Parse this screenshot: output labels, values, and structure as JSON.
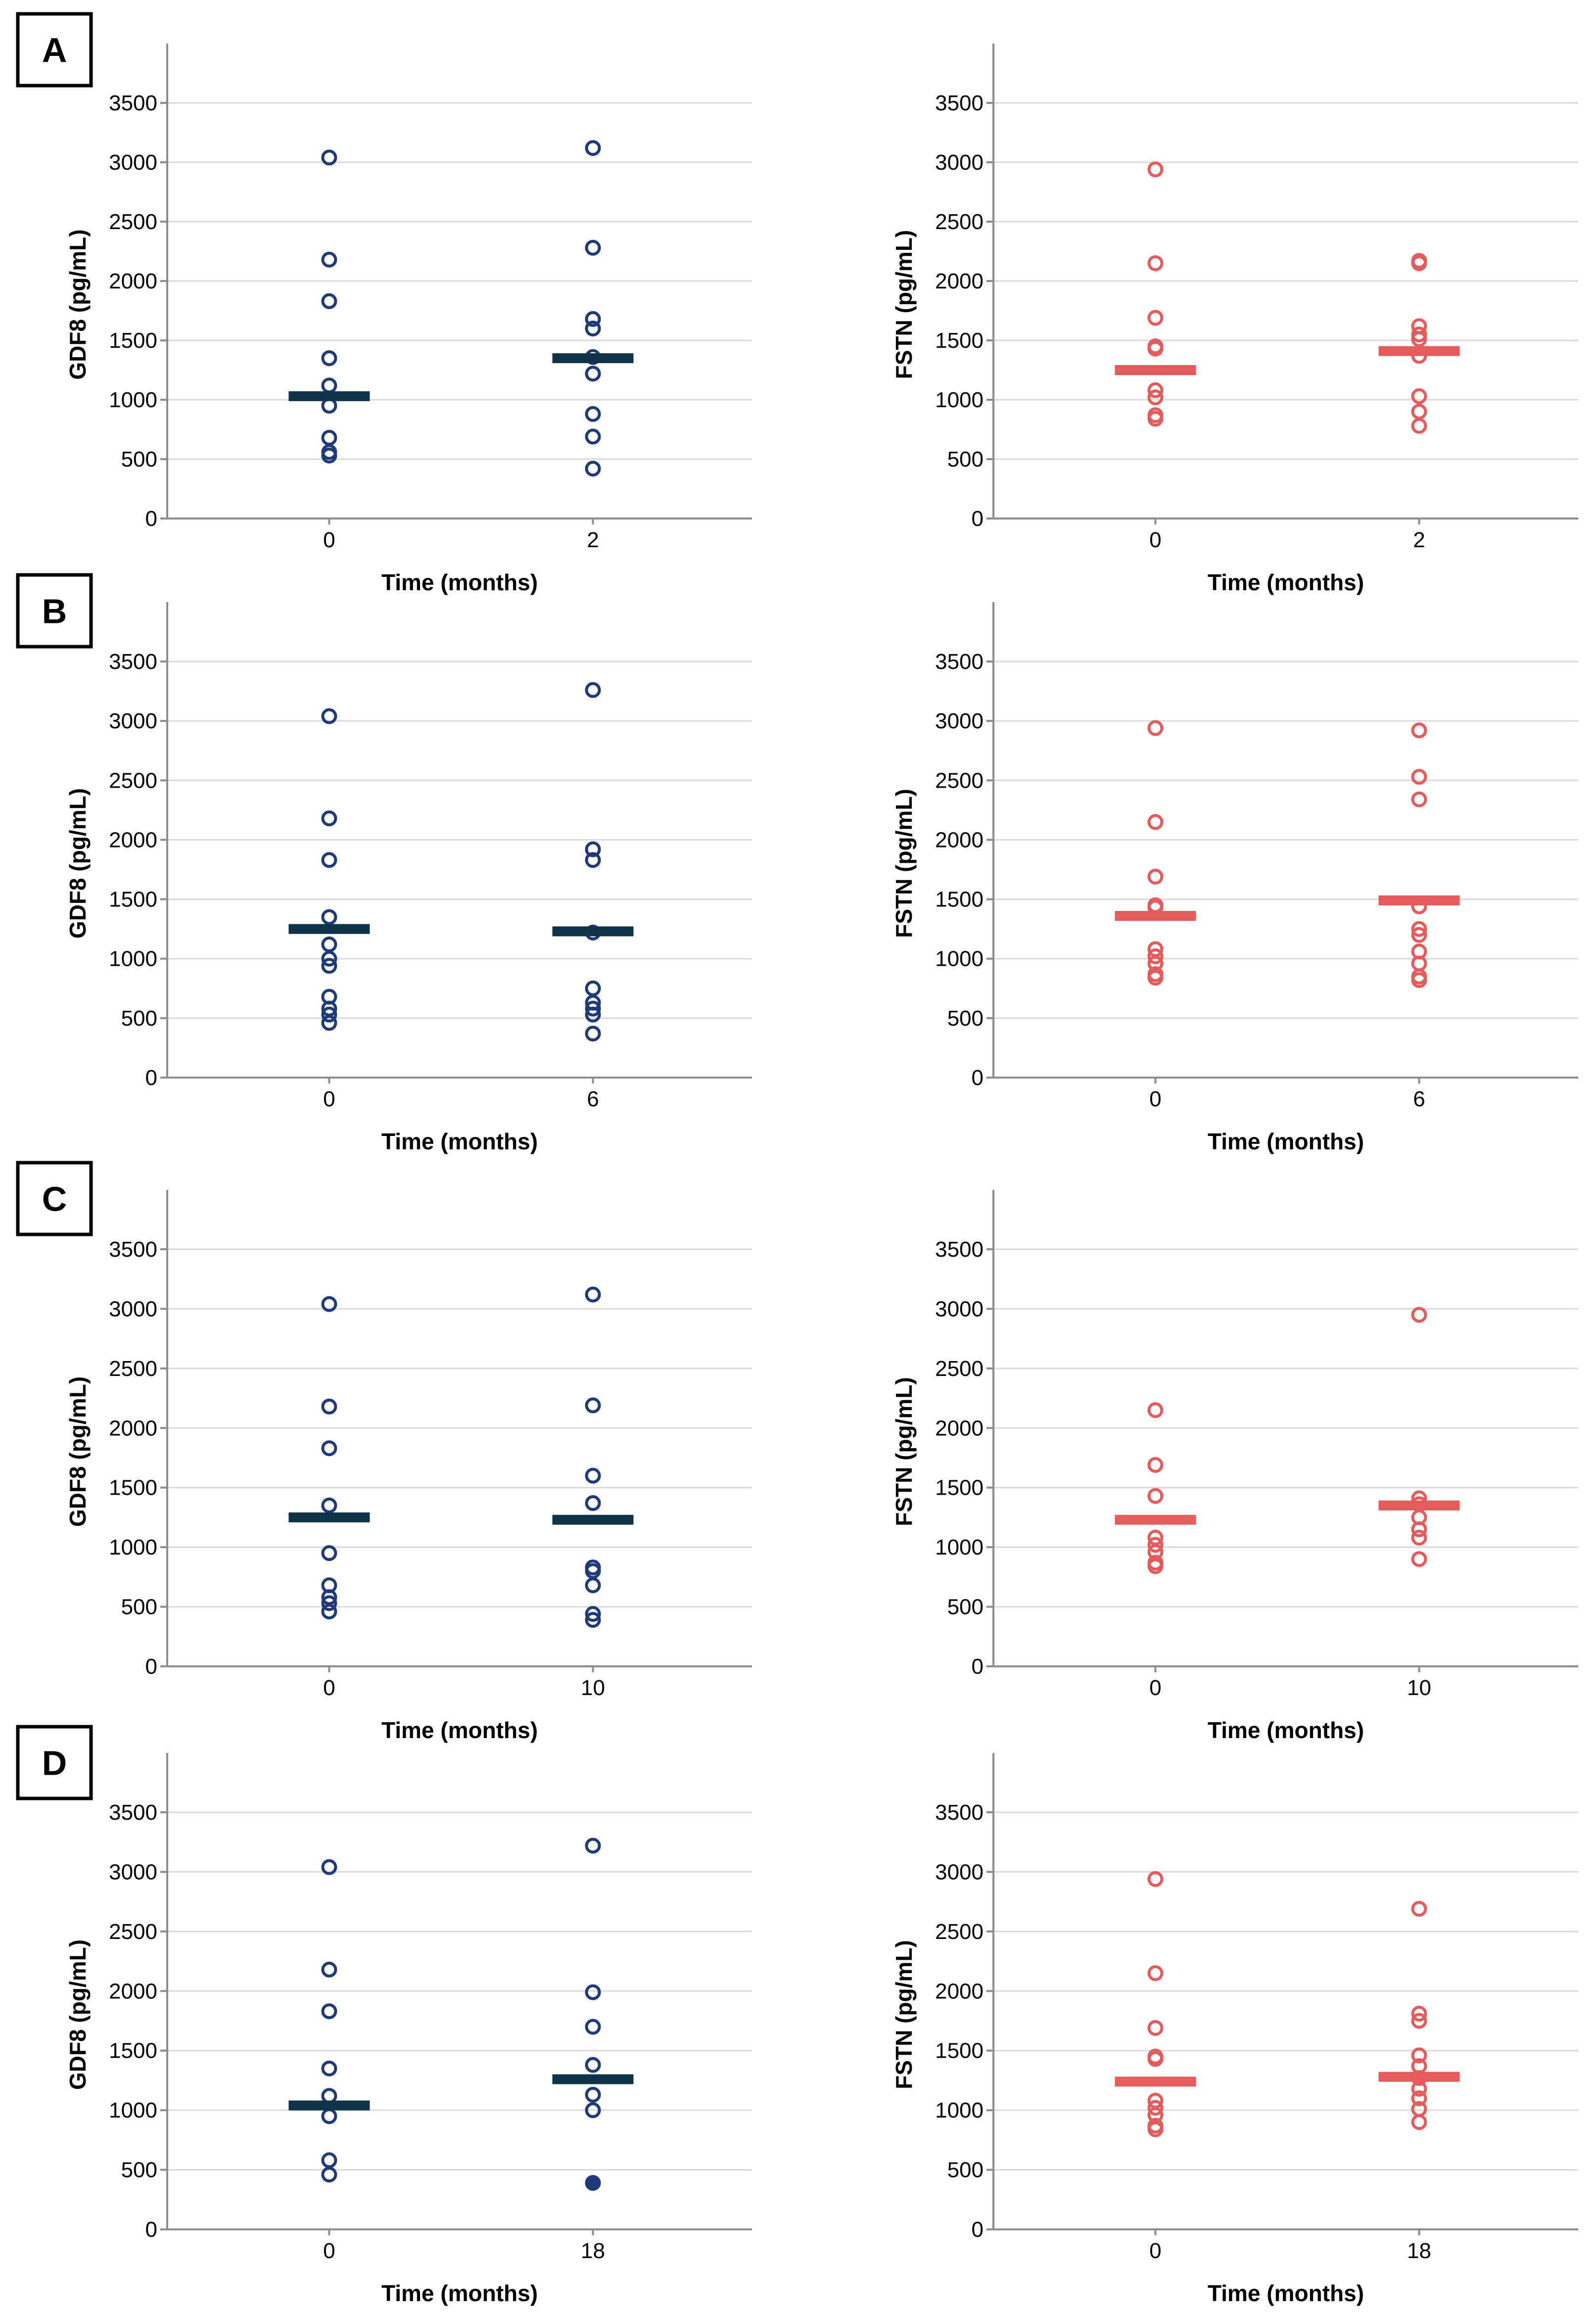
{
  "colors": {
    "gdf8_marker": "#1f3a7a",
    "gdf8_median": "#0f3449",
    "fstn_marker": "#e55a5a",
    "fstn_median": "#e55a5a"
  },
  "panels": [
    {
      "letter": "A"
    },
    {
      "letter": "B"
    },
    {
      "letter": "C"
    },
    {
      "letter": "D"
    }
  ],
  "chart_data": [
    {
      "type": "scatter",
      "panel": "A",
      "xlabel": "Time (months)",
      "ylabel": "GDF8 (pg/mL)",
      "categories": [
        "0",
        "2"
      ],
      "ylim": [
        0,
        3500
      ],
      "yticks": [
        "0",
        "500",
        "1000",
        "1500",
        "2000",
        "2500",
        "3000",
        "3500"
      ],
      "grid": true,
      "series": [
        {
          "values": [
            3040,
            2180,
            1830,
            1350,
            1120,
            950,
            680,
            560,
            530
          ],
          "median": 1030
        },
        {
          "values": [
            3120,
            2280,
            1680,
            1600,
            1360,
            1220,
            880,
            690,
            420
          ],
          "median": 1350
        }
      ]
    },
    {
      "type": "scatter",
      "panel": "A",
      "xlabel": "Time (months)",
      "ylabel": "FSTN (pg/mL)",
      "categories": [
        "0",
        "2"
      ],
      "ylim": [
        0,
        3500
      ],
      "yticks": [
        "0",
        "500",
        "1000",
        "1500",
        "2000",
        "2500",
        "3000",
        "3500"
      ],
      "grid": true,
      "series": [
        {
          "values": [
            2940,
            2150,
            1690,
            1450,
            1430,
            1080,
            1020,
            870,
            840
          ],
          "median": 1250
        },
        {
          "values": [
            2170,
            2150,
            1620,
            1550,
            1510,
            1370,
            1030,
            900,
            780
          ],
          "median": 1410
        }
      ]
    },
    {
      "type": "scatter",
      "panel": "B",
      "xlabel": "Time (months)",
      "ylabel": "GDF8 (pg/mL)",
      "categories": [
        "0",
        "6"
      ],
      "ylim": [
        0,
        3500
      ],
      "yticks": [
        "0",
        "500",
        "1000",
        "1500",
        "2000",
        "2500",
        "3000",
        "3500"
      ],
      "grid": true,
      "series": [
        {
          "values": [
            3040,
            2180,
            1830,
            1350,
            1120,
            1000,
            940,
            680,
            580,
            530,
            460
          ],
          "median": 1250
        },
        {
          "values": [
            3260,
            1920,
            1830,
            1220,
            750,
            630,
            580,
            530,
            370
          ],
          "median": 1230
        }
      ]
    },
    {
      "type": "scatter",
      "panel": "B",
      "xlabel": "Time (months)",
      "ylabel": "FSTN (pg/mL)",
      "categories": [
        "0",
        "6"
      ],
      "ylim": [
        0,
        3500
      ],
      "yticks": [
        "0",
        "500",
        "1000",
        "1500",
        "2000",
        "2500",
        "3000",
        "3500"
      ],
      "grid": true,
      "series": [
        {
          "values": [
            2940,
            2150,
            1690,
            1450,
            1430,
            1080,
            1020,
            960,
            870,
            840
          ],
          "median": 1360
        },
        {
          "values": [
            2920,
            2530,
            2340,
            1440,
            1250,
            1200,
            1060,
            960,
            850,
            820
          ],
          "median": 1490
        }
      ]
    },
    {
      "type": "scatter",
      "panel": "C",
      "xlabel": "Time (months)",
      "ylabel": "GDF8 (pg/mL)",
      "categories": [
        "0",
        "10"
      ],
      "ylim": [
        0,
        3500
      ],
      "yticks": [
        "0",
        "500",
        "1000",
        "1500",
        "2000",
        "2500",
        "3000",
        "3500"
      ],
      "grid": true,
      "series": [
        {
          "values": [
            3040,
            2180,
            1830,
            1350,
            950,
            680,
            580,
            530,
            460
          ],
          "median": 1250
        },
        {
          "values": [
            3120,
            2190,
            1600,
            1370,
            830,
            800,
            680,
            440,
            390
          ],
          "median": 1230
        }
      ]
    },
    {
      "type": "scatter",
      "panel": "C",
      "xlabel": "Time (months)",
      "ylabel": "FSTN (pg/mL)",
      "categories": [
        "0",
        "10"
      ],
      "ylim": [
        0,
        3500
      ],
      "yticks": [
        "0",
        "500",
        "1000",
        "1500",
        "2000",
        "2500",
        "3000",
        "3500"
      ],
      "grid": true,
      "series": [
        {
          "values": [
            2150,
            1690,
            1430,
            1080,
            1020,
            960,
            870,
            840
          ],
          "median": 1230
        },
        {
          "values": [
            2950,
            1410,
            1360,
            1250,
            1150,
            1080,
            900
          ],
          "median": 1350
        }
      ]
    },
    {
      "type": "scatter",
      "panel": "D",
      "xlabel": "Time (months)",
      "ylabel": "GDF8 (pg/mL)",
      "categories": [
        "0",
        "18"
      ],
      "ylim": [
        0,
        3500
      ],
      "yticks": [
        "0",
        "500",
        "1000",
        "1500",
        "2000",
        "2500",
        "3000",
        "3500"
      ],
      "grid": true,
      "series": [
        {
          "values": [
            3040,
            2180,
            1830,
            1350,
            1120,
            950,
            580,
            460
          ],
          "median": 1040
        },
        {
          "values": [
            3220,
            1990,
            1700,
            1380,
            1130,
            1000
          ],
          "filled_values": [
            390
          ],
          "median": 1260
        }
      ]
    },
    {
      "type": "scatter",
      "panel": "D",
      "xlabel": "Time (months)",
      "ylabel": "FSTN (pg/mL)",
      "categories": [
        "0",
        "18"
      ],
      "ylim": [
        0,
        3500
      ],
      "yticks": [
        "0",
        "500",
        "1000",
        "1500",
        "2000",
        "2500",
        "3000",
        "3500"
      ],
      "grid": true,
      "series": [
        {
          "values": [
            2940,
            2150,
            1690,
            1450,
            1430,
            1080,
            1020,
            960,
            870,
            840
          ],
          "median": 1240
        },
        {
          "values": [
            2690,
            1810,
            1750,
            1460,
            1370,
            1270,
            1180,
            1100,
            1010,
            900
          ],
          "median": 1280
        }
      ]
    }
  ]
}
